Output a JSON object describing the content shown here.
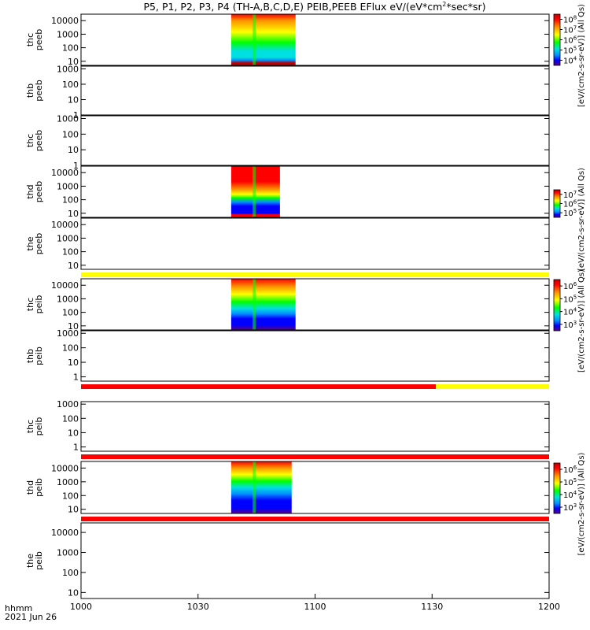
{
  "chart_data": {
    "type": "heatmap",
    "title_parts": [
      "P5, P1, P2, P3, P4 (TH-A,B,C,D,E) PEIB,PEEB EFlux eV/(eV*cm",
      "2",
      "*sec*sr)"
    ],
    "xlabel_lines": [
      "hhmm",
      "2021 Jun 26"
    ],
    "xticks": [
      "1000",
      "1030",
      "1100",
      "1130",
      "1200"
    ],
    "xrange_minutes": [
      0,
      120
    ],
    "panels": [
      {
        "ylabel": [
          "thc",
          "peeb"
        ],
        "yticks": [
          "10000",
          "1000",
          "100",
          "10"
        ],
        "ylim": [
          5,
          30000
        ],
        "data_minutes": [
          38.5,
          55
        ],
        "kind": "electron-full",
        "bottom_band": "none"
      },
      {
        "ylabel": [
          "thb",
          "peeb"
        ],
        "yticks": [
          "1000",
          "100",
          "10",
          "1"
        ],
        "ylim": [
          1,
          1500
        ],
        "data_minutes": null,
        "kind": "empty",
        "bottom_band": "none"
      },
      {
        "ylabel": [
          "thc",
          "peeb"
        ],
        "yticks": [
          "1000",
          "100",
          "10",
          "1"
        ],
        "ylim": [
          1,
          1500
        ],
        "data_minutes": null,
        "kind": "empty",
        "bottom_band": "none"
      },
      {
        "ylabel": [
          "thd",
          "peeb"
        ],
        "yticks": [
          "10000",
          "1000",
          "100",
          "10"
        ],
        "ylim": [
          5,
          30000
        ],
        "data_minutes": [
          38.5,
          51
        ],
        "kind": "electron-short",
        "bottom_band": "none"
      },
      {
        "ylabel": [
          "the",
          "peeb"
        ],
        "yticks": [
          "10000",
          "1000",
          "100",
          "10"
        ],
        "ylim": [
          5,
          30000
        ],
        "data_minutes": null,
        "kind": "empty",
        "bottom_band": "yellow"
      },
      {
        "ylabel": [
          "thc",
          "peib"
        ],
        "yticks": [
          "10000",
          "1000",
          "100",
          "10"
        ],
        "ylim": [
          5,
          30000
        ],
        "data_minutes": [
          38.5,
          55
        ],
        "kind": "ion-full",
        "bottom_band": "none"
      },
      {
        "ylabel": [
          "thb",
          "peib"
        ],
        "yticks": [
          "1000",
          "100",
          "10",
          "1"
        ],
        "ylim": [
          0.5,
          1500
        ],
        "data_minutes": null,
        "kind": "empty",
        "bottom_band": "red-yellow"
      },
      {
        "ylabel": [
          "thc",
          "peib"
        ],
        "yticks": [
          "1000",
          "100",
          "10",
          "1"
        ],
        "ylim": [
          0.5,
          1500
        ],
        "data_minutes": null,
        "kind": "empty",
        "bottom_band": "red"
      },
      {
        "ylabel": [
          "thd",
          "peib"
        ],
        "yticks": [
          "10000",
          "1000",
          "100",
          "10"
        ],
        "ylim": [
          5,
          30000
        ],
        "data_minutes": [
          38.5,
          54
        ],
        "kind": "ion-short",
        "bottom_band": "red"
      },
      {
        "ylabel": [
          "the",
          "peib"
        ],
        "yticks": [
          "10000",
          "1000",
          "100",
          "10"
        ],
        "ylim": [
          5,
          30000
        ],
        "data_minutes": null,
        "kind": "empty",
        "bottom_band": "none"
      }
    ],
    "colorbars": [
      {
        "ticks": [
          {
            "base": "10",
            "exp": "8"
          },
          {
            "base": "10",
            "exp": "7"
          },
          {
            "base": "10",
            "exp": "6"
          },
          {
            "base": "10",
            "exp": "5"
          },
          {
            "base": "10",
            "exp": "4"
          }
        ],
        "label": "[eV/(cm2-s-sr-eV)] (All Qs)"
      },
      {
        "ticks": [
          {
            "base": "10",
            "exp": "7"
          },
          {
            "base": "10",
            "exp": "6"
          },
          {
            "base": "10",
            "exp": "5"
          }
        ],
        "label": "[eV/(cm2-s-sr-eV)] (All Qs)"
      },
      {
        "ticks": [
          {
            "base": "10",
            "exp": "6"
          },
          {
            "base": "10",
            "exp": "5"
          },
          {
            "base": "10",
            "exp": "4"
          },
          {
            "base": "10",
            "exp": "3"
          }
        ],
        "label": "[eV/(cm2-s-sr-eV)] (All Qs)"
      },
      {
        "ticks": [
          {
            "base": "10",
            "exp": "6"
          },
          {
            "base": "10",
            "exp": "5"
          },
          {
            "base": "10",
            "exp": "4"
          },
          {
            "base": "10",
            "exp": "3"
          }
        ],
        "label": "[eV/(cm2-s-sr-eV)] (All Qs)"
      }
    ],
    "colors": {
      "scale": [
        "#5a0080",
        "#0000ff",
        "#0090ff",
        "#00e0e0",
        "#00ff00",
        "#ffff00",
        "#ff9000",
        "#ff0000",
        "#c00000"
      ],
      "band_red": "#ff0000",
      "band_yellow": "#ffff00"
    },
    "grid": "off",
    "legend": "colorbars at right"
  }
}
